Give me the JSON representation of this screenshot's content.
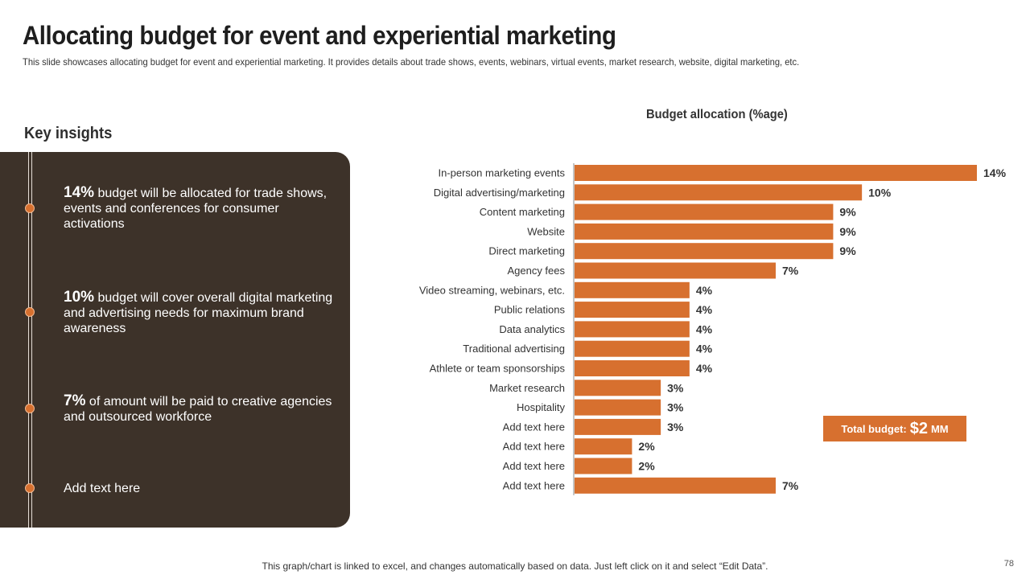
{
  "header": {
    "title": "Allocating budget for event and experiential marketing",
    "subtitle": "This slide showcases allocating budget for event and experiential marketing. It provides details about trade shows, events, webinars, virtual events, market research, website, digital marketing, etc."
  },
  "insights": {
    "heading": "Key insights",
    "items": [
      {
        "highlight": "14%",
        "text": " budget will be allocated for trade shows, events and conferences for consumer activations"
      },
      {
        "highlight": "10%",
        "text": " budget will cover overall digital marketing and advertising needs for maximum brand awareness"
      },
      {
        "highlight": "7%",
        "text": " of amount will be paid to creative agencies and outsourced workforce"
      },
      {
        "highlight": "",
        "text": "Add text here"
      }
    ]
  },
  "total": {
    "label": "Total budget:",
    "value": "$2",
    "unit": "MM"
  },
  "footer": "This graph/chart is linked to excel, and changes automatically based on data. Just left click on it and select “Edit Data”.",
  "page_number": "78",
  "colors": {
    "bar": "#d7702f",
    "panel": "#3d3229"
  },
  "chart_data": {
    "type": "bar",
    "orientation": "horizontal",
    "title": "Budget allocation (%age)",
    "categories": [
      "In-person marketing events",
      "Digital advertising/marketing",
      "Content marketing",
      "Website",
      "Direct marketing",
      "Agency fees",
      "Video streaming, webinars, etc.",
      "Public relations",
      "Data analytics",
      "Traditional advertising",
      "Athlete or team sponsorships",
      "Market research",
      "Hospitality",
      "Add text here",
      "Add text here",
      "Add text here",
      "Add text here"
    ],
    "values": [
      14,
      10,
      9,
      9,
      9,
      7,
      4,
      4,
      4,
      4,
      4,
      3,
      3,
      3,
      2,
      2,
      7
    ],
    "value_suffix": "%",
    "xlim": [
      0,
      14
    ],
    "grid": false,
    "legend": "none"
  }
}
